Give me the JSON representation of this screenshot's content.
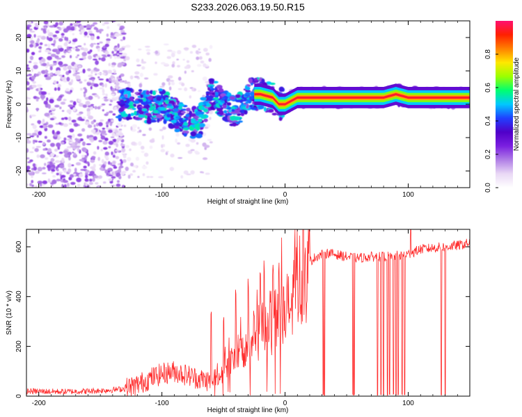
{
  "title": "S233.2026.063.19.50.R15",
  "chart_data": [
    {
      "type": "heatmap",
      "xlabel": "Height of straight line (km)",
      "ylabel": "Frequency (Hz)",
      "xlim": [
        -210,
        150
      ],
      "ylim": [
        -25,
        25
      ],
      "x_ticks": [
        -200,
        -100,
        0,
        100
      ],
      "y_ticks": [
        -20,
        -10,
        0,
        10,
        20
      ],
      "colorbar": {
        "label": "Normalized spectral amplitude",
        "range": [
          0,
          1
        ],
        "ticks": [
          "0.0",
          "0.2",
          "0.4",
          "0.6",
          "0.8"
        ],
        "tick_values": [
          0,
          0.2,
          0.4,
          0.6,
          0.8
        ],
        "colors": [
          "#ffffff",
          "#e9d8f5",
          "#b07ee6",
          "#7a1fe0",
          "#5000c8",
          "#2040ff",
          "#00c8ff",
          "#00ff70",
          "#9cff00",
          "#ffe800",
          "#ff8000",
          "#ff2000",
          "#ff1070"
        ]
      },
      "ridge": {
        "description": "dominant frequency vs height",
        "x": [
          -130,
          -120,
          -110,
          -100,
          -90,
          -80,
          -70,
          -60,
          -50,
          -40,
          -30,
          -20,
          -10,
          -5,
          0,
          10,
          20,
          40,
          60,
          80,
          90,
          100,
          150
        ],
        "y": [
          0,
          0,
          -1,
          0,
          -3,
          -5,
          -6,
          4,
          0,
          -3,
          3,
          3,
          2,
          0,
          0,
          2,
          2,
          2,
          2,
          2,
          3,
          2,
          2
        ],
        "amplitude": [
          0.35,
          0.4,
          0.45,
          0.5,
          0.4,
          0.5,
          0.55,
          0.5,
          0.45,
          0.5,
          0.6,
          0.9,
          0.8,
          0.6,
          0.75,
          0.9,
          0.92,
          0.97,
          0.95,
          0.92,
          0.95,
          0.95,
          0.97
        ]
      }
    },
    {
      "type": "line",
      "xlabel": "Height of straight line (km)",
      "ylabel": "SNR (10 * v/v)",
      "xlim": [
        -210,
        150
      ],
      "ylim": [
        0,
        670
      ],
      "x_ticks": [
        -200,
        -100,
        0,
        100
      ],
      "y_ticks": [
        0,
        200,
        400,
        600
      ],
      "color": "#ff2a2a",
      "series": [
        {
          "name": "SNR",
          "x": [
            -210,
            -180,
            -160,
            -140,
            -130,
            -120,
            -110,
            -100,
            -90,
            -80,
            -70,
            -60,
            -50,
            -45,
            -40,
            -35,
            -30,
            -25,
            -20,
            -15,
            -10,
            -5,
            0,
            5,
            10,
            15,
            20,
            25,
            30,
            35,
            40,
            50,
            60,
            70,
            80,
            90,
            100,
            110,
            120,
            130,
            140,
            150
          ],
          "y": [
            20,
            18,
            20,
            25,
            30,
            45,
            70,
            90,
            100,
            85,
            70,
            60,
            90,
            130,
            170,
            190,
            220,
            240,
            260,
            290,
            300,
            310,
            330,
            380,
            450,
            490,
            540,
            560,
            570,
            575,
            570,
            560,
            555,
            560,
            560,
            565,
            570,
            590,
            595,
            600,
            605,
            615
          ],
          "dips_x": [
            31,
            32,
            55,
            56,
            75,
            78,
            80,
            83,
            85,
            88,
            90,
            92,
            95,
            97,
            127,
            130
          ],
          "spikes_x": [
            -60,
            -50,
            -40,
            -30,
            -20,
            -17,
            -10,
            -5,
            8,
            15,
            85,
            102
          ]
        }
      ]
    }
  ]
}
